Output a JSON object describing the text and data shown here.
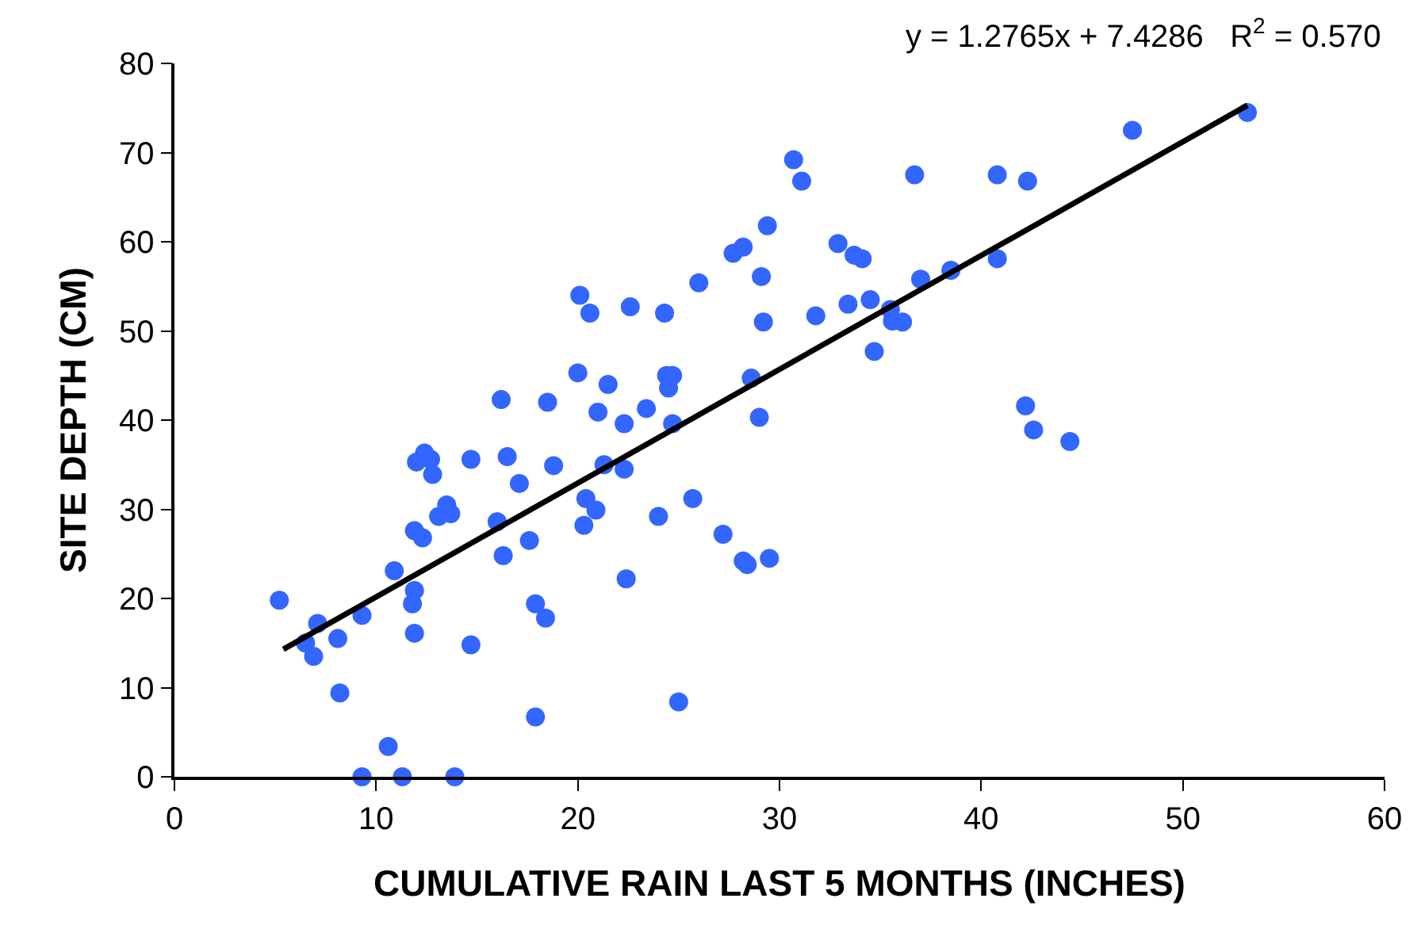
{
  "chart_data": {
    "type": "scatter",
    "xlabel": "CUMULATIVE RAIN LAST 5 MONTHS (INCHES)",
    "ylabel": "SITE DEPTH (CM)",
    "annotations": [
      "y = 1.2765x + 7.4286   R$^{2}$ = 0.570"
    ],
    "xlim": [
      0,
      60
    ],
    "xticks": [
      0,
      10,
      20,
      30,
      40,
      50,
      60
    ],
    "ylim": [
      0,
      80
    ],
    "yticks": [
      0,
      10,
      20,
      30,
      40,
      50,
      60,
      70,
      80
    ],
    "marker": "circle",
    "series": [
      {
        "color": "#3366ff",
        "x": [
          5.2,
          7.1,
          6.5,
          6.9,
          8.1,
          9.3,
          8.2,
          10.6,
          9.3,
          11.3,
          13.9,
          10.9,
          11.9,
          11.8,
          11.9,
          14.7,
          11.9,
          12.3,
          12.4,
          12.0,
          12.7,
          12.8,
          13.1,
          13.5,
          13.7,
          14.7,
          16.2,
          16.5,
          16.0,
          16.3,
          17.1,
          17.9,
          18.4,
          17.9,
          17.6,
          18.5,
          18.8,
          20.1,
          20.0,
          20.6,
          22.6,
          24.3,
          26.0,
          21.5,
          21.0,
          22.3,
          23.4,
          24.4,
          24.7,
          24.5,
          24.7,
          21.3,
          22.3,
          20.4,
          20.9,
          20.3,
          24.0,
          25.7,
          27.2,
          28.2,
          28.4,
          29.5,
          22.4,
          25.0,
          30.7,
          31.1,
          29.4,
          27.7,
          28.2,
          29.1,
          29.2,
          28.6,
          29.0,
          31.8,
          32.9,
          33.7,
          34.1,
          33.4,
          34.5,
          34.7,
          35.5,
          35.6,
          36.1,
          36.7,
          37.0,
          38.5,
          40.8,
          42.3,
          40.8,
          42.2,
          42.6,
          44.4,
          47.5,
          53.2
        ],
        "values": [
          19.8,
          17.2,
          15.0,
          13.5,
          15.5,
          18.1,
          9.4,
          3.4,
          0,
          0,
          0,
          23.1,
          20.9,
          19.4,
          16.1,
          14.8,
          27.6,
          26.8,
          36.3,
          35.3,
          35.6,
          33.9,
          29.2,
          30.5,
          29.5,
          35.6,
          42.3,
          35.9,
          28.6,
          24.8,
          32.9,
          19.4,
          17.8,
          6.7,
          26.5,
          42.0,
          34.9,
          54.0,
          45.3,
          52.0,
          52.7,
          52.0,
          55.4,
          44.0,
          40.9,
          39.6,
          41.3,
          45.0,
          45.0,
          43.6,
          39.6,
          35.0,
          34.5,
          31.2,
          29.9,
          28.2,
          29.2,
          31.2,
          27.2,
          24.2,
          23.8,
          24.5,
          22.2,
          8.4,
          69.2,
          66.8,
          61.8,
          58.7,
          59.4,
          56.1,
          51.0,
          44.7,
          40.3,
          51.7,
          59.8,
          58.5,
          58.1,
          53.0,
          53.5,
          47.7,
          52.4,
          51.1,
          51.0,
          67.5,
          55.8,
          56.8,
          67.5,
          66.8,
          58.1,
          41.6,
          38.9,
          37.6,
          72.5,
          74.5
        ]
      },
      {
        "type": "line",
        "color": "#000000",
        "marker": "none",
        "line_style": "solid",
        "x": [
          5.4,
          53.2
        ],
        "values": [
          14.3,
          75.3
        ]
      }
    ]
  }
}
